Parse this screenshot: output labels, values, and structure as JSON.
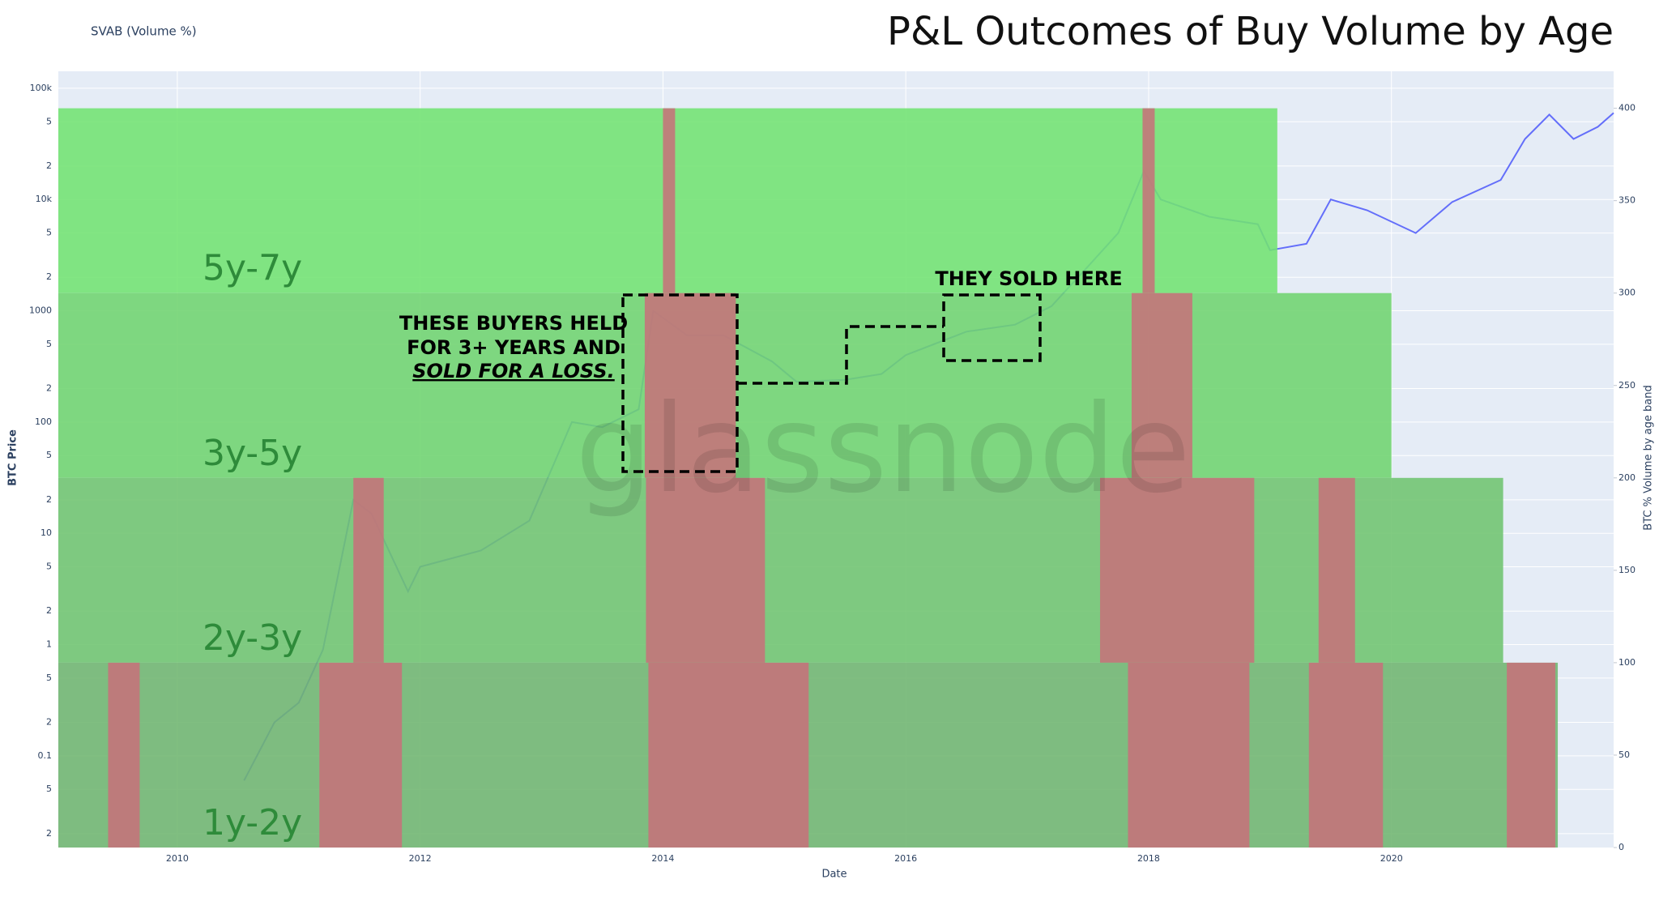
{
  "chart_data": {
    "type": "age_bands",
    "title": "P&L Outcomes of Buy Volume by Age",
    "subtitle": "SVAB (Volume %)",
    "x_label": "Date",
    "y_label": "BTC Price",
    "y2_label": "BTC % Volume by age band",
    "watermark": "glassnode",
    "log_y": true,
    "grid": true,
    "xlim": [
      2009.02,
      2021.83
    ],
    "xticks": [
      2010,
      2012,
      2014,
      2016,
      2018,
      2020
    ],
    "ylim": [
      0.015,
      142000
    ],
    "yticks": [
      {
        "value": 0.02,
        "label": "2"
      },
      {
        "value": 0.05,
        "label": "5"
      },
      0.1,
      {
        "value": 0.2,
        "label": "2"
      },
      {
        "value": 0.5,
        "label": "5"
      },
      1,
      2,
      5,
      10,
      {
        "value": 20,
        "label": "2"
      },
      {
        "value": 50,
        "label": "5"
      },
      100,
      {
        "value": 200,
        "label": "2"
      },
      {
        "value": 500,
        "label": "5"
      },
      1000,
      {
        "value": 2000,
        "label": "2"
      },
      {
        "value": 5000,
        "label": "5"
      },
      {
        "value": 10000,
        "label": "10k"
      },
      {
        "value": 20000,
        "label": "2"
      },
      {
        "value": 50000,
        "label": "5"
      },
      {
        "value": 100000,
        "label": "100k"
      }
    ],
    "y2lim": [
      0,
      420
    ],
    "y2ticks": [
      0,
      50,
      100,
      150,
      200,
      250,
      300,
      350,
      400
    ],
    "loss_color": "#c8707a",
    "bands": [
      {
        "name": "5y-7y",
        "color": "#72e272",
        "y2_range": [
          300,
          400
        ],
        "end": 2019.06,
        "loss_periods": [
          [
            2014.0,
            2014.1
          ],
          [
            2017.95,
            2018.05
          ]
        ]
      },
      {
        "name": "3y-5y",
        "color": "#70d470",
        "y2_range": [
          200,
          300
        ],
        "end": 2020.0,
        "loss_periods": [
          [
            2013.85,
            2014.6
          ],
          [
            2017.86,
            2018.36
          ]
        ]
      },
      {
        "name": "2y-3y",
        "color": "#70c470",
        "y2_range": [
          100,
          200
        ],
        "end": 2020.92,
        "loss_periods": [
          [
            2011.45,
            2011.7
          ],
          [
            2013.86,
            2014.84
          ],
          [
            2017.6,
            2018.87
          ],
          [
            2019.4,
            2019.7
          ]
        ]
      },
      {
        "name": "1y-2y",
        "color": "#6fb56f",
        "y2_range": [
          0,
          100
        ],
        "end": 2021.37,
        "loss_periods": [
          [
            2009.43,
            2009.69
          ],
          [
            2011.17,
            2011.85
          ],
          [
            2013.88,
            2015.2
          ],
          [
            2017.83,
            2018.83
          ],
          [
            2019.32,
            2019.93
          ],
          [
            2020.95,
            2021.35
          ]
        ]
      }
    ],
    "series": [
      {
        "color": "#636efa",
        "x": [
          2010.55,
          2010.8,
          2011.0,
          2011.2,
          2011.45,
          2011.6,
          2011.9,
          2012.0,
          2012.5,
          2012.9,
          2013.25,
          2013.5,
          2013.8,
          2013.92,
          2014.2,
          2014.5,
          2014.9,
          2015.1,
          2015.5,
          2015.8,
          2016.0,
          2016.5,
          2016.9,
          2017.2,
          2017.5,
          2017.75,
          2017.96,
          2018.1,
          2018.5,
          2018.9,
          2019.0,
          2019.3,
          2019.5,
          2019.8,
          2020.2,
          2020.5,
          2020.9,
          2021.1,
          2021.3,
          2021.5,
          2021.7,
          2021.83
        ],
        "values": [
          0.06,
          0.2,
          0.3,
          0.9,
          20,
          15,
          3,
          5,
          7,
          13,
          100,
          90,
          130,
          1000,
          600,
          600,
          350,
          230,
          240,
          270,
          400,
          650,
          750,
          1100,
          2500,
          5000,
          18000,
          10000,
          7000,
          6000,
          3500,
          4000,
          10000,
          8000,
          5000,
          9500,
          15000,
          35000,
          58000,
          35000,
          45000,
          60000
        ]
      }
    ],
    "annotations": {
      "held_lines": [
        "THESE BUYERS HELD",
        "FOR 3+ YEARS AND",
        "SOLD FOR A LOSS."
      ],
      "sold": "THEY SOLD HERE"
    }
  }
}
